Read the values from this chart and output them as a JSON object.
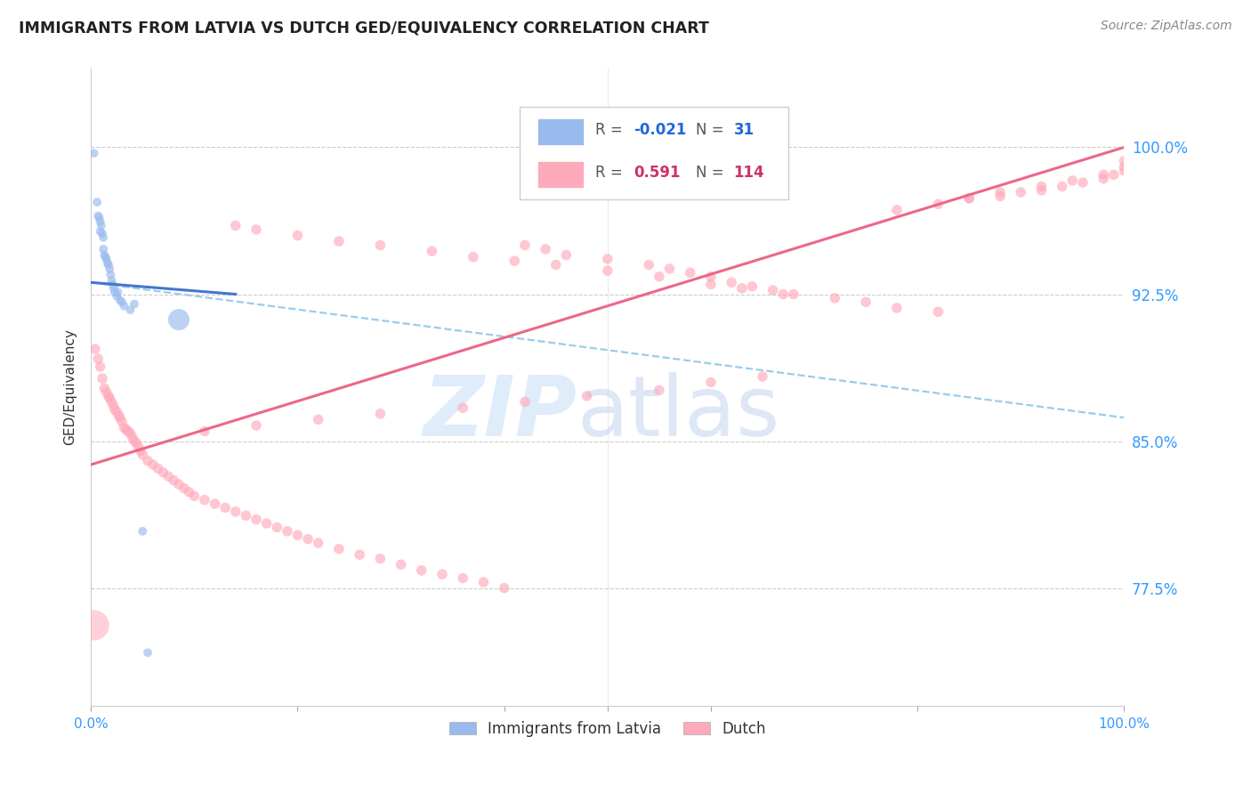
{
  "title": "IMMIGRANTS FROM LATVIA VS DUTCH GED/EQUIVALENCY CORRELATION CHART",
  "source": "Source: ZipAtlas.com",
  "ylabel": "GED/Equivalency",
  "ytick_labels": [
    "77.5%",
    "85.0%",
    "92.5%",
    "100.0%"
  ],
  "ytick_values": [
    0.775,
    0.85,
    0.925,
    1.0
  ],
  "xrange": [
    0.0,
    1.0
  ],
  "yrange": [
    0.715,
    1.04
  ],
  "blue_color": "#99bbee",
  "pink_color": "#ffaabb",
  "blue_line_color": "#4477cc",
  "pink_line_color": "#ee6688",
  "dashed_line_color": "#99ccee",
  "latvia_x": [
    0.003,
    0.006,
    0.007,
    0.008,
    0.009,
    0.009,
    0.01,
    0.011,
    0.012,
    0.012,
    0.013,
    0.014,
    0.015,
    0.016,
    0.017,
    0.018,
    0.019,
    0.02,
    0.021,
    0.022,
    0.023,
    0.025,
    0.026,
    0.028,
    0.03,
    0.032,
    0.038,
    0.042,
    0.05,
    0.055,
    0.085
  ],
  "latvia_y": [
    0.997,
    0.972,
    0.965,
    0.964,
    0.962,
    0.957,
    0.96,
    0.956,
    0.954,
    0.948,
    0.945,
    0.944,
    0.943,
    0.941,
    0.94,
    0.938,
    0.935,
    0.932,
    0.93,
    0.928,
    0.926,
    0.924,
    0.926,
    0.922,
    0.921,
    0.919,
    0.917,
    0.92,
    0.804,
    0.742,
    0.912
  ],
  "latvia_sizes": [
    50,
    50,
    50,
    50,
    50,
    50,
    50,
    50,
    50,
    50,
    50,
    50,
    50,
    50,
    50,
    50,
    50,
    50,
    50,
    50,
    50,
    50,
    50,
    50,
    50,
    50,
    50,
    50,
    50,
    50,
    300
  ],
  "dutch_x": [
    0.004,
    0.007,
    0.009,
    0.011,
    0.013,
    0.015,
    0.017,
    0.018,
    0.02,
    0.022,
    0.023,
    0.025,
    0.027,
    0.028,
    0.03,
    0.032,
    0.034,
    0.036,
    0.038,
    0.04,
    0.042,
    0.044,
    0.046,
    0.048,
    0.05,
    0.055,
    0.06,
    0.065,
    0.07,
    0.075,
    0.08,
    0.085,
    0.09,
    0.095,
    0.1,
    0.11,
    0.12,
    0.13,
    0.14,
    0.15,
    0.16,
    0.17,
    0.18,
    0.19,
    0.2,
    0.21,
    0.22,
    0.24,
    0.26,
    0.28,
    0.3,
    0.32,
    0.34,
    0.36,
    0.38,
    0.4,
    0.42,
    0.44,
    0.46,
    0.5,
    0.54,
    0.56,
    0.58,
    0.6,
    0.62,
    0.64,
    0.66,
    0.68,
    0.72,
    0.75,
    0.78,
    0.82,
    0.85,
    0.88,
    0.9,
    0.92,
    0.94,
    0.96,
    0.98,
    0.99,
    1.0,
    1.0,
    1.0,
    0.98,
    0.95,
    0.92,
    0.88,
    0.85,
    0.82,
    0.78,
    0.14,
    0.16,
    0.2,
    0.24,
    0.28,
    0.33,
    0.37,
    0.41,
    0.45,
    0.5,
    0.55,
    0.6,
    0.63,
    0.67,
    0.65,
    0.6,
    0.55,
    0.48,
    0.42,
    0.36,
    0.28,
    0.22,
    0.16,
    0.11
  ],
  "dutch_y": [
    0.897,
    0.892,
    0.888,
    0.882,
    0.877,
    0.875,
    0.873,
    0.872,
    0.87,
    0.868,
    0.866,
    0.865,
    0.863,
    0.862,
    0.86,
    0.857,
    0.856,
    0.855,
    0.854,
    0.852,
    0.85,
    0.849,
    0.847,
    0.845,
    0.843,
    0.84,
    0.838,
    0.836,
    0.834,
    0.832,
    0.83,
    0.828,
    0.826,
    0.824,
    0.822,
    0.82,
    0.818,
    0.816,
    0.814,
    0.812,
    0.81,
    0.808,
    0.806,
    0.804,
    0.802,
    0.8,
    0.798,
    0.795,
    0.792,
    0.79,
    0.787,
    0.784,
    0.782,
    0.78,
    0.778,
    0.775,
    0.95,
    0.948,
    0.945,
    0.943,
    0.94,
    0.938,
    0.936,
    0.934,
    0.931,
    0.929,
    0.927,
    0.925,
    0.923,
    0.921,
    0.918,
    0.916,
    0.974,
    0.975,
    0.977,
    0.978,
    0.98,
    0.982,
    0.984,
    0.986,
    0.988,
    0.99,
    0.993,
    0.986,
    0.983,
    0.98,
    0.977,
    0.974,
    0.971,
    0.968,
    0.96,
    0.958,
    0.955,
    0.952,
    0.95,
    0.947,
    0.944,
    0.942,
    0.94,
    0.937,
    0.934,
    0.93,
    0.928,
    0.925,
    0.883,
    0.88,
    0.876,
    0.873,
    0.87,
    0.867,
    0.864,
    0.861,
    0.858,
    0.855
  ],
  "pink_big_x": [
    0.003
  ],
  "pink_big_y": [
    0.756
  ],
  "pink_big_size": [
    600
  ],
  "blue_trend_x": [
    0.0,
    0.14
  ],
  "blue_trend_y": [
    0.931,
    0.925
  ],
  "pink_trend_x": [
    0.0,
    1.0
  ],
  "pink_trend_y": [
    0.838,
    1.0
  ],
  "dash_trend_x": [
    0.0,
    1.0
  ],
  "dash_trend_y": [
    0.931,
    0.862
  ]
}
